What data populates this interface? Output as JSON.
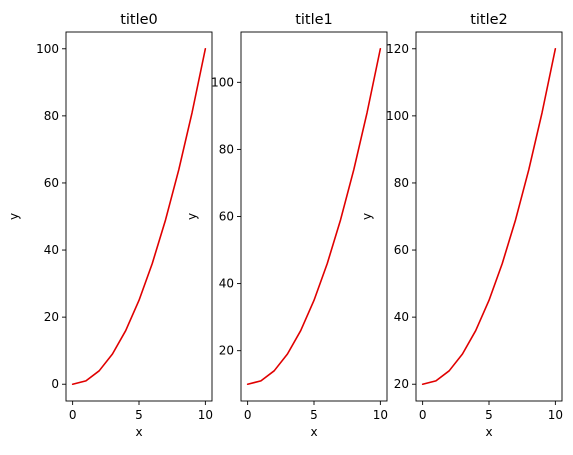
{
  "colors": {
    "series": "#e00000",
    "axes": "#000000",
    "background": "#ffffff"
  },
  "chart_data": [
    {
      "type": "line",
      "title": "title0",
      "xlabel": "x",
      "ylabel": "y",
      "xlim": [
        -0.5,
        10.5
      ],
      "ylim": [
        -5,
        105
      ],
      "xticks": [
        0,
        5,
        10
      ],
      "yticks": [
        0,
        20,
        40,
        60,
        80,
        100
      ],
      "grid": false,
      "series": [
        {
          "x": [
            0,
            1,
            2,
            3,
            4,
            5,
            6,
            7,
            8,
            9,
            10
          ],
          "values": [
            0,
            1,
            4,
            9,
            16,
            25,
            36,
            49,
            64,
            81,
            100
          ]
        }
      ]
    },
    {
      "type": "line",
      "title": "title1",
      "xlabel": "x",
      "ylabel": "y",
      "xlim": [
        -0.5,
        10.5
      ],
      "ylim": [
        5,
        115
      ],
      "xticks": [
        0,
        5,
        10
      ],
      "yticks": [
        20,
        40,
        60,
        80,
        100
      ],
      "grid": false,
      "series": [
        {
          "x": [
            0,
            1,
            2,
            3,
            4,
            5,
            6,
            7,
            8,
            9,
            10
          ],
          "values": [
            10,
            11,
            14,
            19,
            26,
            35,
            46,
            59,
            74,
            91,
            110
          ]
        }
      ]
    },
    {
      "type": "line",
      "title": "title2",
      "xlabel": "x",
      "ylabel": "y",
      "xlim": [
        -0.5,
        10.5
      ],
      "ylim": [
        15,
        125
      ],
      "xticks": [
        0,
        5,
        10
      ],
      "yticks": [
        20,
        40,
        60,
        80,
        100,
        120
      ],
      "grid": false,
      "series": [
        {
          "x": [
            0,
            1,
            2,
            3,
            4,
            5,
            6,
            7,
            8,
            9,
            10
          ],
          "values": [
            20,
            21,
            24,
            29,
            36,
            45,
            56,
            69,
            84,
            101,
            120
          ]
        }
      ]
    }
  ]
}
